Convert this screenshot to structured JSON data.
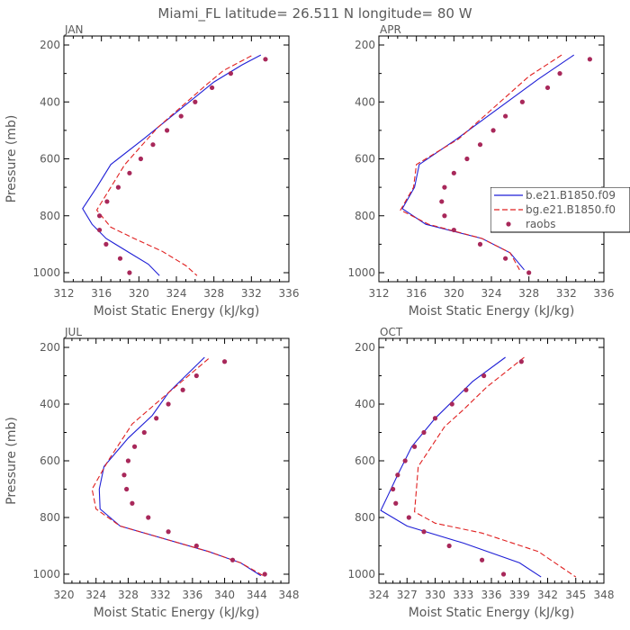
{
  "title": "Miami_FL   latitude= 26.511 N longitude= 80 W",
  "colors": {
    "model_b": "#1f1fd6",
    "model_bg": "#e02020",
    "raobs": "#a8285a",
    "text": "#5a5a5a"
  },
  "legend": {
    "placement": "right, inside APR panel",
    "entries": [
      "b.e21.B1850.f09",
      "bg.e21.B1850.f0",
      "raobs"
    ]
  },
  "chart_data": [
    {
      "type": "line",
      "panel": "JAN",
      "title": "JAN",
      "xlabel": "Moist Static Energy (kJ/kg)",
      "ylabel": "Pressure (mb)",
      "xlim": [
        312,
        336
      ],
      "ylim": [
        1000,
        200
      ],
      "xticks": [
        312,
        316,
        320,
        324,
        328,
        332,
        336
      ],
      "yticks": [
        200,
        400,
        600,
        800,
        1000
      ],
      "series": [
        {
          "name": "b.e21.B1850.f09",
          "style": "solid",
          "points": [
            [
              333.0,
              235
            ],
            [
              331.0,
              270
            ],
            [
              328.0,
              330
            ],
            [
              320.5,
              530
            ],
            [
              317.0,
              620
            ],
            [
              315.5,
              700
            ],
            [
              314.0,
              775
            ],
            [
              315.0,
              830
            ],
            [
              316.5,
              880
            ],
            [
              319.0,
              930
            ],
            [
              321.0,
              970
            ],
            [
              322.2,
              1010
            ]
          ]
        },
        {
          "name": "bg.e21.B1850.f0",
          "style": "dashed",
          "points": [
            [
              332.0,
              238
            ],
            [
              329.0,
              290
            ],
            [
              327.0,
              345
            ],
            [
              322.0,
              490
            ],
            [
              318.5,
              620
            ],
            [
              317.0,
              700
            ],
            [
              315.5,
              780
            ],
            [
              317.0,
              840
            ],
            [
              319.5,
              880
            ],
            [
              322.5,
              925
            ],
            [
              325.0,
              975
            ],
            [
              326.2,
              1010
            ]
          ]
        },
        {
          "name": "raobs",
          "style": "markers",
          "points": [
            [
              333.5,
              250
            ],
            [
              329.8,
              300
            ],
            [
              327.8,
              350
            ],
            [
              326.0,
              400
            ],
            [
              324.5,
              450
            ],
            [
              323.0,
              500
            ],
            [
              321.5,
              550
            ],
            [
              320.2,
              600
            ],
            [
              319.0,
              650
            ],
            [
              317.8,
              700
            ],
            [
              316.6,
              750
            ],
            [
              315.8,
              800
            ],
            [
              315.8,
              850
            ],
            [
              316.5,
              900
            ],
            [
              318.0,
              950
            ],
            [
              319.0,
              1000
            ]
          ]
        }
      ]
    },
    {
      "type": "line",
      "panel": "APR",
      "title": "APR",
      "xlabel": "Moist Static Energy (kJ/kg)",
      "ylabel": "",
      "xlim": [
        312,
        336
      ],
      "ylim": [
        1000,
        200
      ],
      "xticks": [
        312,
        316,
        320,
        324,
        328,
        332,
        336
      ],
      "yticks": [
        200,
        400,
        600,
        800,
        1000
      ],
      "series": [
        {
          "name": "b.e21.B1850.f09",
          "style": "solid",
          "points": [
            [
              332.8,
              235
            ],
            [
              329.0,
              320
            ],
            [
              320.3,
              530
            ],
            [
              316.3,
              620
            ],
            [
              315.8,
              700
            ],
            [
              314.5,
              775
            ],
            [
              317.0,
              830
            ],
            [
              323.0,
              880
            ],
            [
              326.0,
              930
            ],
            [
              327.5,
              990
            ]
          ]
        },
        {
          "name": "bg.e21.B1850.f0",
          "style": "dashed",
          "points": [
            [
              331.5,
              235
            ],
            [
              328.0,
              310
            ],
            [
              320.5,
              530
            ],
            [
              316.0,
              620
            ],
            [
              315.7,
              700
            ],
            [
              314.3,
              780
            ],
            [
              317.3,
              830
            ],
            [
              323.0,
              880
            ],
            [
              326.0,
              930
            ],
            [
              327.0,
              990
            ]
          ]
        },
        {
          "name": "raobs",
          "style": "markers",
          "points": [
            [
              334.5,
              250
            ],
            [
              331.3,
              300
            ],
            [
              330.0,
              350
            ],
            [
              327.3,
              400
            ],
            [
              325.5,
              450
            ],
            [
              324.2,
              500
            ],
            [
              322.8,
              550
            ],
            [
              321.4,
              600
            ],
            [
              320.0,
              650
            ],
            [
              319.0,
              700
            ],
            [
              318.7,
              750
            ],
            [
              319.0,
              800
            ],
            [
              320.0,
              850
            ],
            [
              322.8,
              900
            ],
            [
              325.5,
              950
            ],
            [
              328.0,
              1000
            ]
          ]
        }
      ]
    },
    {
      "type": "line",
      "panel": "JUL",
      "title": "JUL",
      "xlabel": "Moist Static Energy (kJ/kg)",
      "ylabel": "Pressure (mb)",
      "xlim": [
        320,
        348
      ],
      "ylim": [
        1000,
        200
      ],
      "xticks": [
        320,
        324,
        328,
        332,
        336,
        340,
        344,
        348
      ],
      "yticks": [
        200,
        400,
        600,
        800,
        1000
      ],
      "series": [
        {
          "name": "b.e21.B1850.f09",
          "style": "solid",
          "points": [
            [
              337.5,
              235
            ],
            [
              333.0,
              360
            ],
            [
              331.0,
              440
            ],
            [
              328.0,
              520
            ],
            [
              325.0,
              620
            ],
            [
              324.4,
              700
            ],
            [
              324.5,
              770
            ],
            [
              327.0,
              830
            ],
            [
              338.0,
              920
            ],
            [
              342.0,
              960
            ],
            [
              344.5,
              1005
            ]
          ]
        },
        {
          "name": "bg.e21.B1850.f0",
          "style": "dashed",
          "points": [
            [
              338.0,
              240
            ],
            [
              333.0,
              360
            ],
            [
              328.5,
              470
            ],
            [
              325.5,
              600
            ],
            [
              323.5,
              700
            ],
            [
              324.0,
              770
            ],
            [
              327.0,
              830
            ],
            [
              338.0,
              920
            ],
            [
              342.0,
              960
            ],
            [
              344.8,
              1005
            ]
          ]
        },
        {
          "name": "raobs",
          "style": "markers",
          "points": [
            [
              340.0,
              250
            ],
            [
              336.5,
              300
            ],
            [
              334.8,
              350
            ],
            [
              333.0,
              400
            ],
            [
              331.5,
              450
            ],
            [
              330.0,
              500
            ],
            [
              328.8,
              550
            ],
            [
              328.0,
              600
            ],
            [
              327.5,
              650
            ],
            [
              327.8,
              700
            ],
            [
              328.5,
              750
            ],
            [
              330.5,
              800
            ],
            [
              333.0,
              850
            ],
            [
              336.5,
              900
            ],
            [
              341.0,
              950
            ],
            [
              345.0,
              1000
            ]
          ]
        }
      ]
    },
    {
      "type": "line",
      "panel": "OCT",
      "title": "OCT",
      "xlabel": "Moist Static Energy (kJ/kg)",
      "ylabel": "",
      "xlim": [
        324,
        348
      ],
      "ylim": [
        1000,
        200
      ],
      "xticks": [
        324,
        327,
        330,
        333,
        336,
        339,
        342,
        345,
        348
      ],
      "yticks": [
        200,
        400,
        600,
        800,
        1000
      ],
      "series": [
        {
          "name": "b.e21.B1850.f09",
          "style": "solid",
          "points": [
            [
              337.5,
              235
            ],
            [
              334.0,
              320
            ],
            [
              330.0,
              450
            ],
            [
              327.5,
              550
            ],
            [
              326.0,
              650
            ],
            [
              325.0,
              720
            ],
            [
              324.2,
              775
            ],
            [
              327.0,
              830
            ],
            [
              333.0,
              890
            ],
            [
              339.0,
              960
            ],
            [
              341.3,
              1010
            ]
          ]
        },
        {
          "name": "bg.e21.B1850.f0",
          "style": "dashed",
          "points": [
            [
              339.5,
              235
            ],
            [
              335.5,
              340
            ],
            [
              333.0,
              420
            ],
            [
              331.0,
              480
            ],
            [
              329.0,
              580
            ],
            [
              328.2,
              620
            ],
            [
              328.0,
              700
            ],
            [
              327.8,
              780
            ],
            [
              330.0,
              820
            ],
            [
              335.0,
              855
            ],
            [
              341.0,
              920
            ],
            [
              345.0,
              1010
            ]
          ]
        },
        {
          "name": "raobs",
          "style": "markers",
          "points": [
            [
              339.2,
              250
            ],
            [
              335.2,
              300
            ],
            [
              333.3,
              350
            ],
            [
              331.8,
              400
            ],
            [
              330.0,
              450
            ],
            [
              328.8,
              500
            ],
            [
              327.8,
              550
            ],
            [
              326.8,
              600
            ],
            [
              326.0,
              650
            ],
            [
              325.5,
              700
            ],
            [
              325.8,
              750
            ],
            [
              327.2,
              800
            ],
            [
              328.8,
              850
            ],
            [
              331.5,
              900
            ],
            [
              335.0,
              950
            ],
            [
              337.3,
              1000
            ]
          ]
        }
      ]
    }
  ]
}
